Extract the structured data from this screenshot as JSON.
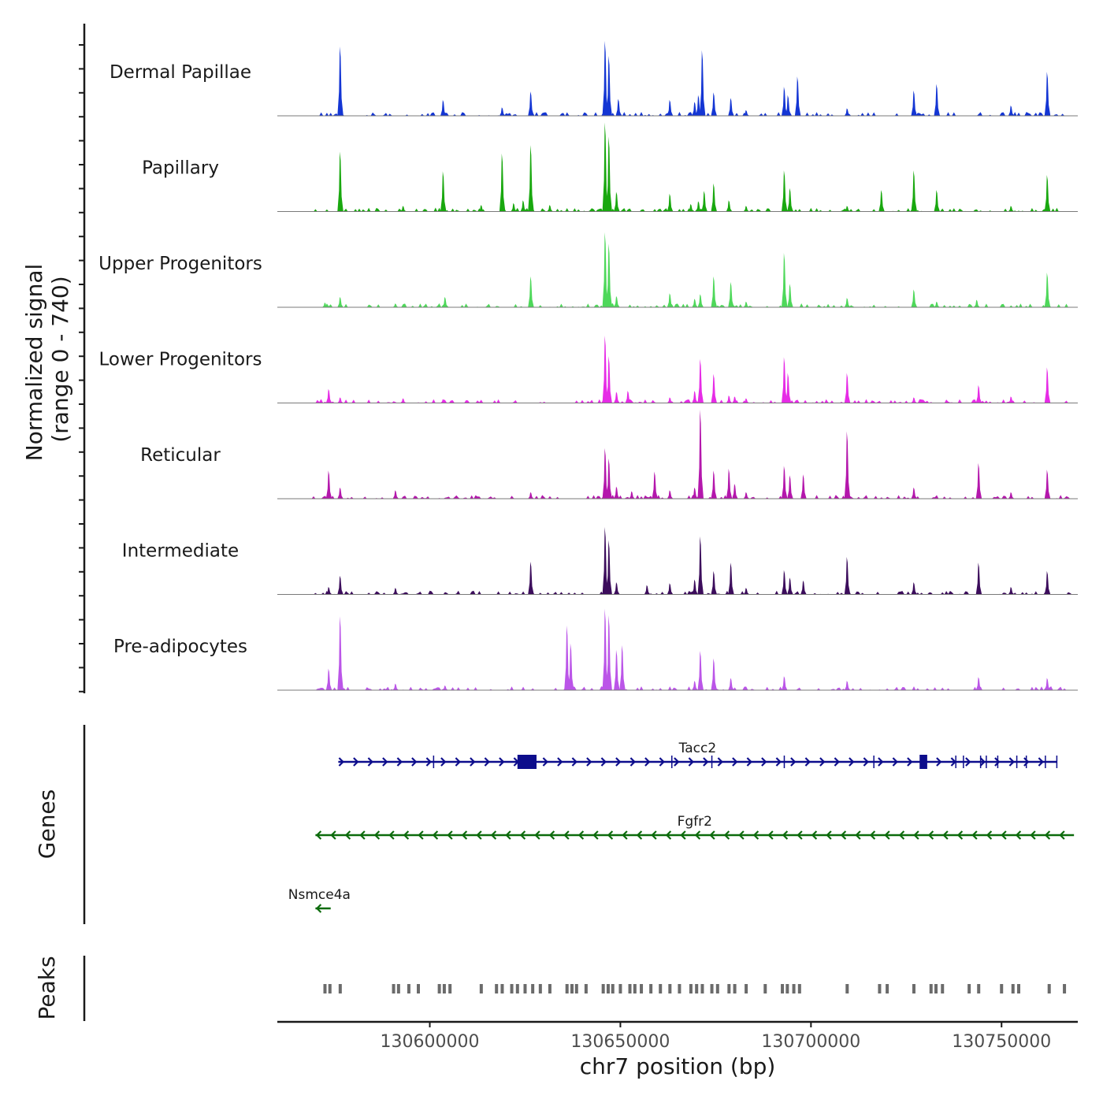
{
  "chart_data": {
    "type": "area",
    "chromosome": "chr7",
    "xlim": [
      130560000,
      130770000
    ],
    "ylim": [
      0,
      740
    ],
    "ylabel_line1": "Normalized signal",
    "ylabel_line2": "(range 0 - 740)",
    "xlabel": "chr7 position (bp)",
    "x_ticks": [
      130600000,
      130650000,
      130700000,
      130750000
    ],
    "x_tick_labels": [
      "130600000",
      "130650000",
      "130700000",
      "130750000"
    ],
    "tracks": [
      {
        "name": "Dermal Papillae",
        "color": "#1436d4",
        "peaks": [
          [
            130576500,
            740
          ],
          [
            130603500,
            170
          ],
          [
            130619000,
            90
          ],
          [
            130626500,
            260
          ],
          [
            130646000,
            800
          ],
          [
            130647000,
            640
          ],
          [
            130649500,
            180
          ],
          [
            130663000,
            170
          ],
          [
            130669500,
            150
          ],
          [
            130670500,
            220
          ],
          [
            130671500,
            700
          ],
          [
            130674500,
            250
          ],
          [
            130679000,
            190
          ],
          [
            130683000,
            60
          ],
          [
            130693000,
            310
          ],
          [
            130694000,
            220
          ],
          [
            130696500,
            420
          ],
          [
            130709500,
            80
          ],
          [
            130727000,
            270
          ],
          [
            130733000,
            340
          ],
          [
            130752500,
            110
          ],
          [
            130762000,
            470
          ]
        ]
      },
      {
        "name": "Papillary",
        "color": "#19a80f",
        "peaks": [
          [
            130576500,
            640
          ],
          [
            130593000,
            60
          ],
          [
            130603500,
            430
          ],
          [
            130613500,
            70
          ],
          [
            130619000,
            620
          ],
          [
            130622000,
            90
          ],
          [
            130624500,
            120
          ],
          [
            130626500,
            710
          ],
          [
            130631500,
            70
          ],
          [
            130646000,
            950
          ],
          [
            130647000,
            800
          ],
          [
            130649000,
            210
          ],
          [
            130663000,
            190
          ],
          [
            130668500,
            80
          ],
          [
            130670500,
            110
          ],
          [
            130672000,
            220
          ],
          [
            130674500,
            300
          ],
          [
            130678500,
            120
          ],
          [
            130683000,
            60
          ],
          [
            130693000,
            440
          ],
          [
            130694500,
            250
          ],
          [
            130709500,
            60
          ],
          [
            130718500,
            230
          ],
          [
            130727000,
            440
          ],
          [
            130733000,
            230
          ],
          [
            130752500,
            60
          ],
          [
            130762000,
            390
          ]
        ]
      },
      {
        "name": "Upper Progenitors",
        "color": "#4ed85a",
        "peaks": [
          [
            130572500,
            50
          ],
          [
            130576500,
            110
          ],
          [
            130591000,
            40
          ],
          [
            130604000,
            110
          ],
          [
            130626500,
            330
          ],
          [
            130646000,
            800
          ],
          [
            130647000,
            680
          ],
          [
            130649000,
            120
          ],
          [
            130663000,
            150
          ],
          [
            130669500,
            90
          ],
          [
            130671000,
            140
          ],
          [
            130674500,
            330
          ],
          [
            130679000,
            270
          ],
          [
            130683000,
            60
          ],
          [
            130693000,
            580
          ],
          [
            130694500,
            250
          ],
          [
            130709500,
            100
          ],
          [
            130727000,
            190
          ],
          [
            130733000,
            60
          ],
          [
            130743500,
            80
          ],
          [
            130762000,
            370
          ]
        ]
      },
      {
        "name": "Lower Progenitors",
        "color": "#e62be6",
        "peaks": [
          [
            130573500,
            150
          ],
          [
            130576500,
            60
          ],
          [
            130593000,
            50
          ],
          [
            130603500,
            40
          ],
          [
            130646000,
            720
          ],
          [
            130647000,
            500
          ],
          [
            130649000,
            120
          ],
          [
            130652000,
            130
          ],
          [
            130663000,
            60
          ],
          [
            130669500,
            130
          ],
          [
            130671000,
            470
          ],
          [
            130674500,
            310
          ],
          [
            130678500,
            80
          ],
          [
            130680000,
            70
          ],
          [
            130683000,
            50
          ],
          [
            130693000,
            490
          ],
          [
            130694000,
            320
          ],
          [
            130709500,
            320
          ],
          [
            130727000,
            60
          ],
          [
            130744000,
            190
          ],
          [
            130752500,
            70
          ],
          [
            130762000,
            380
          ]
        ]
      },
      {
        "name": "Reticular",
        "color": "#b417ac",
        "peaks": [
          [
            130573500,
            300
          ],
          [
            130576500,
            120
          ],
          [
            130591000,
            90
          ],
          [
            130626500,
            70
          ],
          [
            130646000,
            540
          ],
          [
            130647000,
            430
          ],
          [
            130649000,
            130
          ],
          [
            130653000,
            80
          ],
          [
            130659000,
            290
          ],
          [
            130663000,
            90
          ],
          [
            130669500,
            120
          ],
          [
            130671000,
            950
          ],
          [
            130674500,
            300
          ],
          [
            130678500,
            320
          ],
          [
            130680000,
            160
          ],
          [
            130683000,
            70
          ],
          [
            130693000,
            350
          ],
          [
            130694500,
            250
          ],
          [
            130698000,
            260
          ],
          [
            130709500,
            720
          ],
          [
            130727000,
            120
          ],
          [
            130744000,
            380
          ],
          [
            130752500,
            70
          ],
          [
            130762000,
            310
          ]
        ]
      },
      {
        "name": "Intermediate",
        "color": "#3c0d5c",
        "peaks": [
          [
            130573500,
            80
          ],
          [
            130576500,
            200
          ],
          [
            130591000,
            70
          ],
          [
            130626500,
            350
          ],
          [
            130646000,
            720
          ],
          [
            130647000,
            580
          ],
          [
            130649000,
            130
          ],
          [
            130657000,
            100
          ],
          [
            130663000,
            120
          ],
          [
            130669500,
            160
          ],
          [
            130671000,
            620
          ],
          [
            130674500,
            250
          ],
          [
            130679000,
            340
          ],
          [
            130683000,
            70
          ],
          [
            130693000,
            260
          ],
          [
            130694500,
            180
          ],
          [
            130698000,
            150
          ],
          [
            130709500,
            400
          ],
          [
            130727000,
            130
          ],
          [
            130744000,
            340
          ],
          [
            130752500,
            80
          ],
          [
            130762000,
            250
          ]
        ]
      },
      {
        "name": "Pre-adipocytes",
        "color": "#bb55e8",
        "peaks": [
          [
            130573500,
            230
          ],
          [
            130576500,
            790
          ],
          [
            130591000,
            70
          ],
          [
            130604000,
            50
          ],
          [
            130636000,
            690
          ],
          [
            130637000,
            500
          ],
          [
            130646000,
            870
          ],
          [
            130647000,
            800
          ],
          [
            130649000,
            430
          ],
          [
            130650500,
            480
          ],
          [
            130669500,
            100
          ],
          [
            130671000,
            420
          ],
          [
            130674500,
            340
          ],
          [
            130679000,
            130
          ],
          [
            130693000,
            150
          ],
          [
            130709500,
            100
          ],
          [
            130744000,
            140
          ],
          [
            130762000,
            130
          ]
        ]
      }
    ],
    "genes_label": "Genes",
    "genes": [
      {
        "name": "Tacc2",
        "strand": "+",
        "start": 130576000,
        "end": 130764500,
        "color": "#0d0d8c",
        "exons": [
          [
            130623000,
            130628000
          ],
          [
            130728500,
            130730500
          ]
        ]
      },
      {
        "name": "Fgfr2",
        "strand": "-",
        "start": 130570000,
        "end": 130769000,
        "color": "#0c6b0c",
        "exons": []
      },
      {
        "name": "Nsmce4a",
        "strand": "-",
        "start": 130570000,
        "end": 130574000,
        "color": "#0c6b0c",
        "exons": []
      }
    ],
    "peaks_label": "Peaks",
    "peak_regions": [
      130572500,
      130573800,
      130576500,
      130590500,
      130591800,
      130594500,
      130597000,
      130602500,
      130603800,
      130605300,
      130613500,
      130617500,
      130619000,
      130621500,
      130623000,
      130625000,
      130627000,
      130629000,
      130631500,
      130636000,
      130637300,
      130638500,
      130641000,
      130645500,
      130646800,
      130648000,
      130650000,
      130652500,
      130653800,
      130655500,
      130658000,
      130660500,
      130663000,
      130665500,
      130668500,
      130670000,
      130671500,
      130674000,
      130675500,
      130678500,
      130680000,
      130683000,
      130688000,
      130692500,
      130693800,
      130695500,
      130697000,
      130709500,
      130718000,
      130720000,
      130727000,
      130731500,
      130732800,
      130734500,
      130741500,
      130744000,
      130750000,
      130753000,
      130754500,
      130762500,
      130766500
    ]
  }
}
